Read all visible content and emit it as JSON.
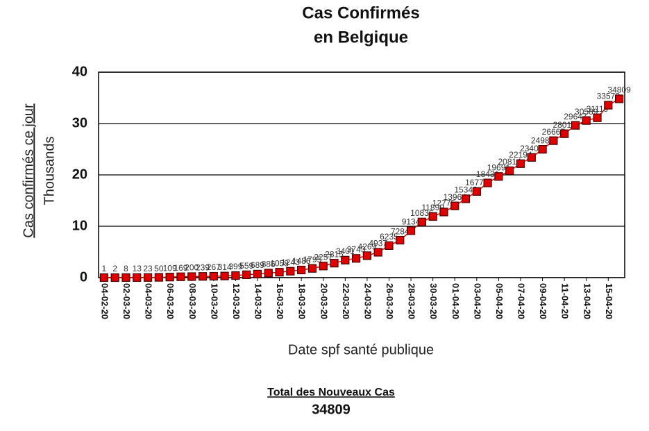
{
  "chart_data": {
    "type": "line",
    "title": [
      "Cas Confirmés",
      "en Belgique"
    ],
    "y_label": [
      "Cas confirmés ce jour",
      "Thousands"
    ],
    "x_label": "Date spf santé publique",
    "total_label": "Total des Nouveaux Cas",
    "total_value": 34809,
    "categories": [
      "04-02-20",
      null,
      "02-03-20",
      null,
      "04-03-20",
      null,
      "06-03-20",
      null,
      "08-03-20",
      null,
      "10-03-20",
      null,
      "12-03-20",
      null,
      "14-03-20",
      null,
      "16-03-20",
      null,
      "18-03-20",
      null,
      "20-03-20",
      null,
      "22-03-20",
      null,
      "24-03-20",
      null,
      "26-03-20",
      null,
      "28-03-20",
      null,
      "30-03-20",
      null,
      "01-04-20",
      null,
      "03-04-20",
      null,
      "05-04-20",
      null,
      "07-04-20",
      null,
      "09-04-20",
      null,
      "11-04-20",
      null,
      "13-04-20",
      null,
      "15-04-20",
      null
    ],
    "series": [
      {
        "name": "Cas confirmés",
        "color": "#e00000",
        "values": [
          0.001,
          0.002,
          0.008,
          0.013,
          0.023,
          0.05,
          0.109,
          0.169,
          0.2,
          0.239,
          0.267,
          0.314,
          0.399,
          0.559,
          0.689,
          0.886,
          1.058,
          1.243,
          1.486,
          1.795,
          2.257,
          2.815,
          3.401,
          3.743,
          4.269,
          4.937,
          6.235,
          7.284,
          9.134,
          10.836,
          11.899,
          12.775,
          13.964,
          15.348,
          16.77,
          18.431,
          19.691,
          20.814,
          22.194,
          23.403,
          24.983,
          26.667,
          28.018,
          29.647,
          30.589,
          31.119,
          33.573,
          34.809
        ],
        "value_labels": [
          "1",
          "2",
          "8",
          "13",
          "23",
          "50",
          "109",
          "169",
          "200",
          "239",
          "267",
          "314",
          "399",
          "559",
          "689",
          "886",
          "1058",
          "1243",
          "1486",
          "1795",
          "2257",
          "2815",
          "3401",
          "3743",
          "4269",
          "4937",
          "6235",
          "7284",
          "9134",
          "10836",
          "11899",
          "12775",
          "13964",
          "15348",
          "16770",
          "18431",
          "19691",
          "20814",
          "22194",
          "23403",
          "24983",
          "26667",
          "28018",
          "29647",
          "30589",
          "31119",
          "33573",
          "34809"
        ]
      }
    ],
    "ylim": [
      0,
      40
    ],
    "yticks": [
      0,
      10,
      20,
      30,
      40
    ],
    "grid": true
  }
}
